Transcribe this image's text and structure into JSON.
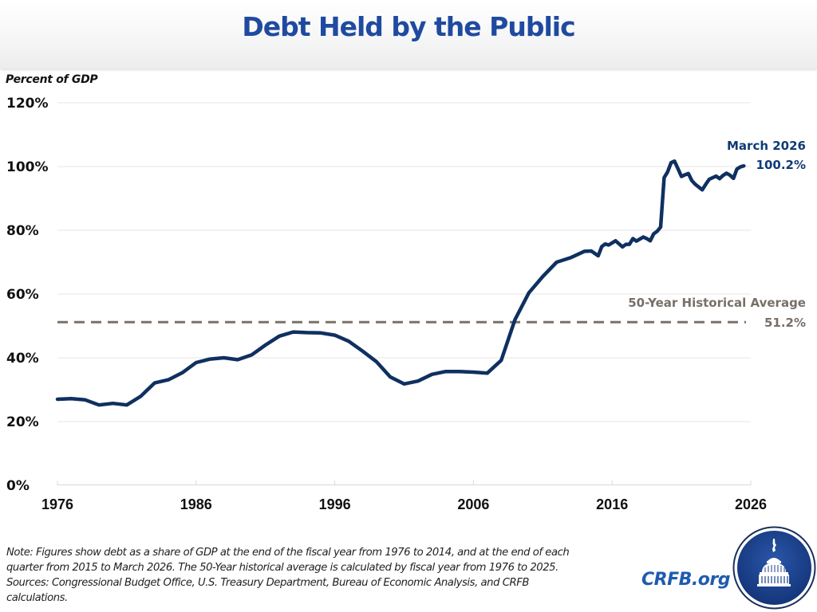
{
  "header": {
    "title": "Debt Held by the Public"
  },
  "colors": {
    "title": "#1f4aa0",
    "line": "#0f3060",
    "average": "#7a7268",
    "grid": "#e6e6e6",
    "logo_bg": "#1a3f8a"
  },
  "chart_data": {
    "type": "line",
    "title": "Debt Held by the Public",
    "ylabel": "Percent of GDP",
    "xlabel": "",
    "xlim": [
      1976,
      2026
    ],
    "ylim": [
      0,
      120
    ],
    "x_ticks": [
      "1976",
      "1986",
      "1996",
      "2006",
      "2016",
      "2026"
    ],
    "y_ticks": [
      "0%",
      "20%",
      "40%",
      "60%",
      "80%",
      "100%",
      "120%"
    ],
    "grid": true,
    "series": [
      {
        "name": "Debt Held by the Public (% of GDP)",
        "points": [
          [
            1976,
            27.0
          ],
          [
            1977,
            27.2
          ],
          [
            1978,
            26.8
          ],
          [
            1979,
            25.2
          ],
          [
            1980,
            25.7
          ],
          [
            1981,
            25.2
          ],
          [
            1982,
            27.9
          ],
          [
            1983,
            32.1
          ],
          [
            1984,
            33.1
          ],
          [
            1985,
            35.3
          ],
          [
            1986,
            38.5
          ],
          [
            1987,
            39.6
          ],
          [
            1988,
            40.0
          ],
          [
            1989,
            39.4
          ],
          [
            1990,
            40.9
          ],
          [
            1991,
            44.0
          ],
          [
            1992,
            46.8
          ],
          [
            1993,
            48.1
          ],
          [
            1994,
            47.9
          ],
          [
            1995,
            47.8
          ],
          [
            1996,
            47.1
          ],
          [
            1997,
            45.2
          ],
          [
            1998,
            42.1
          ],
          [
            1999,
            38.8
          ],
          [
            2000,
            34.0
          ],
          [
            2001,
            31.8
          ],
          [
            2002,
            32.7
          ],
          [
            2003,
            34.8
          ],
          [
            2004,
            35.7
          ],
          [
            2005,
            35.7
          ],
          [
            2006,
            35.5
          ],
          [
            2007,
            35.2
          ],
          [
            2008,
            39.2
          ],
          [
            2009,
            52.0
          ],
          [
            2010,
            60.4
          ],
          [
            2011,
            65.5
          ],
          [
            2012,
            70.0
          ],
          [
            2013,
            71.4
          ],
          [
            2014,
            73.4
          ],
          [
            2014.5,
            73.5
          ],
          [
            2015.0,
            72.0
          ],
          [
            2015.25,
            74.9
          ],
          [
            2015.5,
            75.7
          ],
          [
            2015.75,
            75.4
          ],
          [
            2016.25,
            76.7
          ],
          [
            2016.75,
            74.8
          ],
          [
            2017.0,
            75.6
          ],
          [
            2017.25,
            75.6
          ],
          [
            2017.5,
            77.4
          ],
          [
            2017.75,
            76.6
          ],
          [
            2018.25,
            77.9
          ],
          [
            2018.5,
            77.4
          ],
          [
            2018.75,
            76.7
          ],
          [
            2019.0,
            78.9
          ],
          [
            2019.25,
            79.7
          ],
          [
            2019.5,
            81.0
          ],
          [
            2019.75,
            96.5
          ],
          [
            2020.0,
            98.3
          ],
          [
            2020.25,
            101.2
          ],
          [
            2020.5,
            101.7
          ],
          [
            2020.75,
            99.3
          ],
          [
            2021.0,
            96.9
          ],
          [
            2021.25,
            97.4
          ],
          [
            2021.5,
            97.8
          ],
          [
            2021.75,
            95.6
          ],
          [
            2022.0,
            94.4
          ],
          [
            2022.5,
            92.7
          ],
          [
            2022.75,
            94.4
          ],
          [
            2023.0,
            96.0
          ],
          [
            2023.5,
            97.0
          ],
          [
            2023.75,
            96.2
          ],
          [
            2024.0,
            97.2
          ],
          [
            2024.25,
            97.9
          ],
          [
            2024.5,
            97.3
          ],
          [
            2024.75,
            96.3
          ],
          [
            2025.0,
            99.2
          ],
          [
            2025.25,
            99.9
          ],
          [
            2025.5,
            100.2
          ]
        ]
      }
    ],
    "reference_line": {
      "label": "50-Year Historical Average",
      "value": 51.2,
      "value_label": "51.2%",
      "style": "dashed"
    },
    "annotations": [
      {
        "label": "March 2026",
        "value_label": "100.2%",
        "x": 2025.5,
        "y": 100.2
      }
    ]
  },
  "notes": {
    "line1": "Note: Figures show debt as a share of GDP at the end of the fiscal year from 1976 to 2014, and at the end of each",
    "line2": "quarter from 2015 to March 2026. The 50-Year historical average is calculated by fiscal year from 1976 to 2025.",
    "line3": "Sources: Congressional Budget Office, U.S. Treasury Department, Bureau of Economic Analysis, and CRFB",
    "line4": "calculations."
  },
  "footer": {
    "brand": "CRFB.org",
    "logo_icon": "capitol-dome-seal-icon"
  }
}
